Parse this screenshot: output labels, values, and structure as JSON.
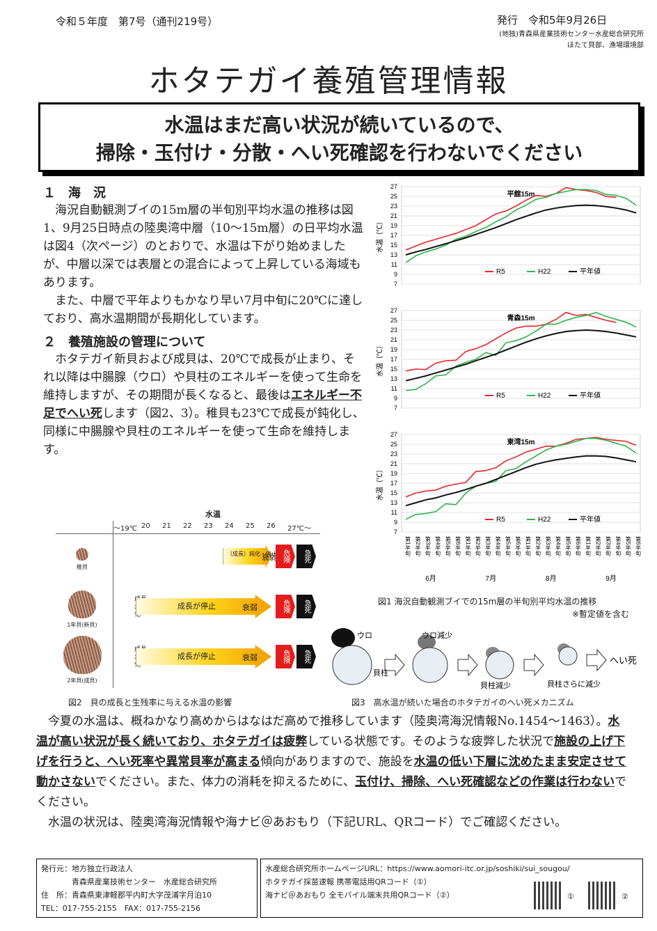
{
  "header": {
    "issue": "令和５年度　第7号（通刊219号）",
    "published": "発行　令和5年9月26日",
    "org_line1": "(地独)青森県産業技術センター水産総合研究所",
    "org_line2": "ほたて貝部、漁場環境部"
  },
  "title": "ホタテガイ養殖管理情報",
  "headline": {
    "line1": "水温はまだ高い状況が続いているので、",
    "line2": "掃除・玉付け・分散・へい死確認を行わないでください"
  },
  "section1": {
    "heading": "１　海　況",
    "p1": "　海況自動観測ブイの15m層の半旬別平均水温の推移は図1、9月25日時点の陸奥湾中層（10～15m層）の日平均水温は図4（次ページ）のとおりで、水温は下がり始めましたが、中層以深では表層との混合によって上昇している海域もあります。",
    "p2": "　また、中層で平年よりもかなり早い7月中旬に20℃に達しており、高水温期間が長期化しています。"
  },
  "section2": {
    "heading": "２　養殖施設の管理について",
    "p1a": "　ホタテガイ新貝および成貝は、20℃で成長が止まり、それ以降は中腸腺（ウロ）や貝柱のエネルギーを使って生命を維持しますが、その期間が長くなると、最後は",
    "p1u": "エネルギー不足でへい死",
    "p1b": "します（図2、3）。稚貝も23℃で成長が鈍化し、同様に中腸腺や貝柱のエネルギーを使って生命を維持します。"
  },
  "fig2": {
    "axis_title": "水温",
    "temps": [
      "～19℃",
      "20",
      "21",
      "22",
      "23",
      "24",
      "25",
      "26",
      "27℃～"
    ],
    "rows": [
      {
        "label": "稚貝",
        "arrow": "（成長）鈍化・停止",
        "weak": "衰弱",
        "danger": "危険",
        "death": "急死"
      },
      {
        "label": "1年貝(新貝)",
        "slow": "成長が鈍化",
        "arrow": "成長が停止",
        "weak": "衰弱",
        "danger": "危険",
        "death": "急死"
      },
      {
        "label": "2年貝(成貝)",
        "slow": "成長が鈍化",
        "arrow": "成長が停止",
        "weak": "衰弱",
        "danger": "危険",
        "death": "急死"
      }
    ],
    "caption": "図2　貝の成長と生残率に与える水温の影響"
  },
  "fig3": {
    "labels": [
      "ウロ",
      "貝柱",
      "ウロ減少",
      "貝柱減少",
      "貝柱さらに減少",
      "へい死"
    ],
    "caption": "図3　高水温が続いた場合のホタテガイのへい死メカニズム"
  },
  "fig1": {
    "caption": "図1 海況自動観測ブイでの15m層の半旬別平均水温の推移",
    "note": "※暫定値を含む",
    "legend": [
      "R5",
      "H22",
      "平年値"
    ],
    "colors": {
      "R5": "#e8262b",
      "H22": "#2cb34a",
      "avg": "#111111"
    },
    "months": [
      "6月",
      "7月",
      "8月",
      "9月"
    ],
    "x_ticks": [
      "第1半旬",
      "第2半旬",
      "第3半旬",
      "第4半旬",
      "第5半旬",
      "第6半旬",
      "第1半旬",
      "第2半旬",
      "第3半旬",
      "第4半旬",
      "第5半旬",
      "第6半旬",
      "第1半旬",
      "第2半旬",
      "第3半旬",
      "第4半旬",
      "第5半旬",
      "第6半旬",
      "第1半旬",
      "第2半旬",
      "第3半旬",
      "第4半旬",
      "第5半旬",
      "第6半旬"
    ]
  },
  "chart_data": [
    {
      "type": "line",
      "title": "平舘15m",
      "ylabel": "水温（℃）",
      "ylim": [
        7,
        27
      ],
      "yticks": [
        7,
        9,
        11,
        13,
        15,
        17,
        19,
        21,
        23,
        25,
        27
      ],
      "series": [
        {
          "name": "R5",
          "values": [
            14.0,
            14.8,
            15.6,
            16.2,
            16.8,
            17.4,
            18.2,
            19.0,
            20.2,
            21.4,
            22.0,
            23.0,
            24.2,
            25.2,
            25.0,
            25.6,
            26.8,
            26.4,
            26.2,
            25.8,
            25.0,
            24.8
          ]
        },
        {
          "name": "H22",
          "values": [
            11.4,
            12.8,
            13.6,
            14.2,
            15.0,
            16.2,
            16.8,
            17.8,
            18.6,
            19.8,
            20.8,
            22.2,
            23.2,
            24.4,
            24.8,
            25.6,
            26.0,
            26.4,
            26.4,
            26.2,
            25.4,
            25.2,
            24.6,
            23.2
          ]
        },
        {
          "name": "平年値",
          "values": [
            13.0,
            13.6,
            14.1,
            14.7,
            15.3,
            15.9,
            16.5,
            17.2,
            17.9,
            18.6,
            19.4,
            20.2,
            20.9,
            21.6,
            22.2,
            22.6,
            22.9,
            23.1,
            23.2,
            23.1,
            22.9,
            22.6,
            22.2,
            21.6
          ]
        }
      ]
    },
    {
      "type": "line",
      "title": "青森15m",
      "ylabel": "水温（℃）",
      "ylim": [
        7,
        27
      ],
      "yticks": [
        7,
        9,
        11,
        13,
        15,
        17,
        19,
        21,
        23,
        25,
        27
      ],
      "series": [
        {
          "name": "R5",
          "values": [
            14.6,
            15.0,
            14.9,
            16.2,
            16.7,
            16.8,
            18.6,
            19.2,
            20.0,
            21.2,
            22.4,
            23.4,
            23.8,
            23.8,
            24.2,
            25.2,
            26.6,
            26.0,
            26.2,
            25.6,
            25.0,
            24.6
          ]
        },
        {
          "name": "H22",
          "values": [
            10.6,
            10.8,
            12.0,
            13.6,
            13.8,
            15.6,
            16.4,
            17.0,
            18.4,
            17.8,
            20.4,
            20.8,
            21.6,
            22.8,
            24.2,
            24.2,
            25.0,
            25.6,
            26.0,
            26.6,
            25.8,
            25.2,
            24.6,
            23.6
          ]
        },
        {
          "name": "平年値",
          "values": [
            12.6,
            13.1,
            13.6,
            14.2,
            14.8,
            15.4,
            16.0,
            16.7,
            17.4,
            18.1,
            18.9,
            19.7,
            20.5,
            21.2,
            21.8,
            22.3,
            22.7,
            22.9,
            23.0,
            22.9,
            22.7,
            22.4,
            22.0,
            21.6
          ]
        }
      ]
    },
    {
      "type": "line",
      "title": "東湾15m",
      "ylabel": "水温（℃）",
      "ylim": [
        7,
        27
      ],
      "yticks": [
        7,
        9,
        11,
        13,
        15,
        17,
        19,
        21,
        23,
        25,
        27
      ],
      "series": [
        {
          "name": "R5",
          "values": [
            14.2,
            15.0,
            15.4,
            15.6,
            16.4,
            16.8,
            17.2,
            19.4,
            19.6,
            20.2,
            21.6,
            22.4,
            23.4,
            24.0,
            24.6,
            24.6,
            25.2,
            26.0,
            26.2,
            26.4,
            26.0,
            25.8,
            25.6,
            24.8
          ]
        },
        {
          "name": "H22",
          "values": [
            9.6,
            10.6,
            10.8,
            11.2,
            12.8,
            12.6,
            15.0,
            16.4,
            17.0,
            17.4,
            19.6,
            20.0,
            21.4,
            22.6,
            23.8,
            24.6,
            25.0,
            25.6,
            26.2,
            26.2,
            25.8,
            25.2,
            24.6,
            23.2
          ]
        },
        {
          "name": "平年値",
          "values": [
            12.4,
            13.0,
            13.6,
            14.0,
            14.6,
            15.1,
            15.7,
            16.4,
            17.0,
            17.8,
            18.6,
            19.4,
            20.2,
            20.9,
            21.4,
            21.8,
            22.1,
            22.4,
            22.6,
            22.6,
            22.5,
            22.2,
            21.8,
            21.4
          ]
        }
      ]
    }
  ],
  "summary": {
    "s1": "　今夏の水温は、概ねかなり高めからはなはだ高めで推移しています（陸奥湾海況情報No.1454～1463）。",
    "s2u": "水温が高い状況が長く続いており、ホタテガイは疲弊",
    "s3": "している状態です。そのような疲弊した状況で",
    "s4u": "施設の上げ下げを行うと、へい死率や異常貝率が高まる",
    "s5": "傾向がありますので、施設を",
    "s6u": "水温の低い下層に沈めたまま安定させて動かさない",
    "s7": "でください。また、体力の消耗を抑えるために、",
    "s8u": "玉付け、掃除、へい死確認などの作業は行わない",
    "s9": "でください。",
    "s10": "　水温の状況は、陸奥湾海況情報や海ナビ＠あおもり（下記URL、QRコード）でご確認ください。"
  },
  "footer": {
    "left1": "発行元：地方独立行政法人",
    "left2": "　　　　青森県産業技術センター　水産総合研究所",
    "left3": "住　所：青森県東津軽郡平内町大字茂浦字月泊10",
    "left4": "TEL：017-755-2155　FAX：017-755-2156",
    "right1": "水産総合研究所ホームページURL：https://www.aomori-itc.or.jp/soshiki/sui_sougou/",
    "right2": "ホタテガイ採苗速報 携帯電話用QRコード（①）",
    "right3": "海ナビ＠あおもり 全モバイル端末共用QRコード（②）",
    "qr1": "①",
    "qr2": "②"
  }
}
